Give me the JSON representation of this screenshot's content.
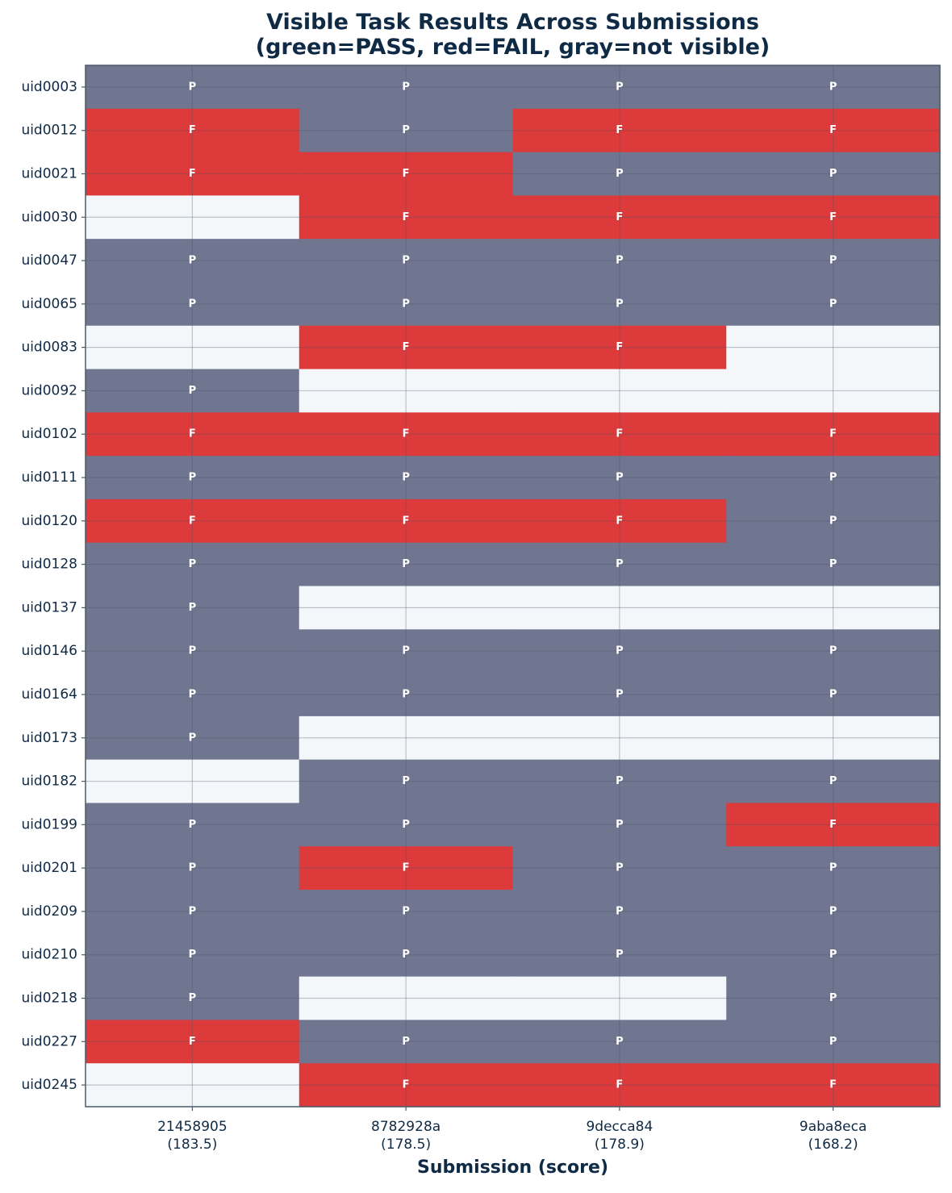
{
  "chart_data": {
    "type": "heatmap",
    "title": "Visible Task Results Across Submissions\n(green=PASS, red=FAIL, gray=not visible)",
    "xlabel": "Submission (score)",
    "ylabel": "",
    "grid": true,
    "colors": {
      "P": "#707590",
      "F": "#dc3a3b",
      "none": "#f3f7fa",
      "text_dark": "#0f2a45",
      "cell_text": "#ffffff",
      "grid": "#4a5568",
      "frame": "#4a5a6a"
    },
    "submissions": [
      {
        "id": "21458905",
        "score": "(183.5)"
      },
      {
        "id": "8782928a",
        "score": "(178.5)"
      },
      {
        "id": "9decca84",
        "score": "(178.9)"
      },
      {
        "id": "9aba8eca",
        "score": "(168.2)"
      }
    ],
    "tasks": [
      "uid0003",
      "uid0012",
      "uid0021",
      "uid0030",
      "uid0047",
      "uid0065",
      "uid0083",
      "uid0092",
      "uid0102",
      "uid0111",
      "uid0120",
      "uid0128",
      "uid0137",
      "uid0146",
      "uid0164",
      "uid0173",
      "uid0182",
      "uid0199",
      "uid0201",
      "uid0209",
      "uid0210",
      "uid0218",
      "uid0227",
      "uid0245"
    ],
    "values": [
      [
        "P",
        "P",
        "P",
        "P"
      ],
      [
        "F",
        "P",
        "F",
        "F"
      ],
      [
        "F",
        "F",
        "P",
        "P"
      ],
      [
        "",
        "F",
        "F",
        "F"
      ],
      [
        "P",
        "P",
        "P",
        "P"
      ],
      [
        "P",
        "P",
        "P",
        "P"
      ],
      [
        "",
        "F",
        "F",
        ""
      ],
      [
        "P",
        "",
        "",
        ""
      ],
      [
        "F",
        "F",
        "F",
        "F"
      ],
      [
        "P",
        "P",
        "P",
        "P"
      ],
      [
        "F",
        "F",
        "F",
        "P"
      ],
      [
        "P",
        "P",
        "P",
        "P"
      ],
      [
        "P",
        "",
        "",
        ""
      ],
      [
        "P",
        "P",
        "P",
        "P"
      ],
      [
        "P",
        "P",
        "P",
        "P"
      ],
      [
        "P",
        "",
        "",
        ""
      ],
      [
        "",
        "P",
        "P",
        "P"
      ],
      [
        "P",
        "P",
        "P",
        "F"
      ],
      [
        "P",
        "F",
        "P",
        "P"
      ],
      [
        "P",
        "P",
        "P",
        "P"
      ],
      [
        "P",
        "P",
        "P",
        "P"
      ],
      [
        "P",
        "",
        "",
        "P"
      ],
      [
        "F",
        "P",
        "P",
        "P"
      ],
      [
        "",
        "F",
        "F",
        "F"
      ]
    ]
  }
}
